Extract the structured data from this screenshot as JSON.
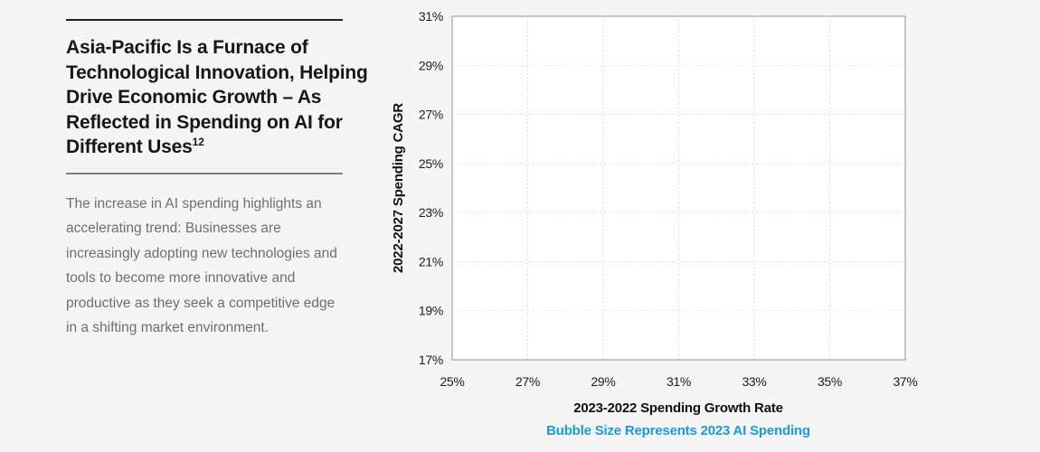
{
  "left_panel": {
    "title_lines": [
      "Asia-Pacific Is a Furnace of",
      "Technological Innovation, Helping",
      "Drive Economic Growth – As",
      "Reflected in Spending on AI for",
      "Different Uses"
    ],
    "title_full": "Asia-Pacific Is a Furnace of Technological Innovation, Helping Drive Economic Growth – As Reflected in Spending on AI for Different Uses",
    "footnote_superscript": "12",
    "body": "The increase in AI spending highlights an accelerating trend: Businesses are increasingly adopting new technologies and tools to become more innovative and productive as they seek a competitive edge in a shifting market environment."
  },
  "chart_data": {
    "type": "scatter",
    "variant": "bubble",
    "title": "",
    "xlabel": "2023-2022 Spending Growth Rate",
    "ylabel": "2022-2027 Spending CAGR",
    "caption": "Bubble Size Represents 2023 AI Spending",
    "xlim": [
      25,
      37
    ],
    "ylim": [
      17,
      31
    ],
    "x_tick_labels": [
      "25%",
      "27%",
      "29%",
      "31%",
      "33%",
      "35%",
      "37%"
    ],
    "y_tick_labels_top_to_bottom": [
      "31%",
      "29%",
      "27%",
      "25%",
      "23%",
      "21%",
      "19%",
      "17%"
    ],
    "grid": "dotted",
    "legend_position": "none",
    "points": []
  },
  "colors": {
    "background": "#f5f5f5",
    "plot_background": "#ffffff",
    "plot_border": "#a9a9a9",
    "gridline": "#d4d4d4",
    "title_text": "#161616",
    "body_text": "#6e6e6e",
    "axis_text": "#1c1c1c",
    "accent_blue": "#189cd9",
    "rule_top": "#1f1f1f",
    "rule_mid": "#7e7e7e"
  }
}
